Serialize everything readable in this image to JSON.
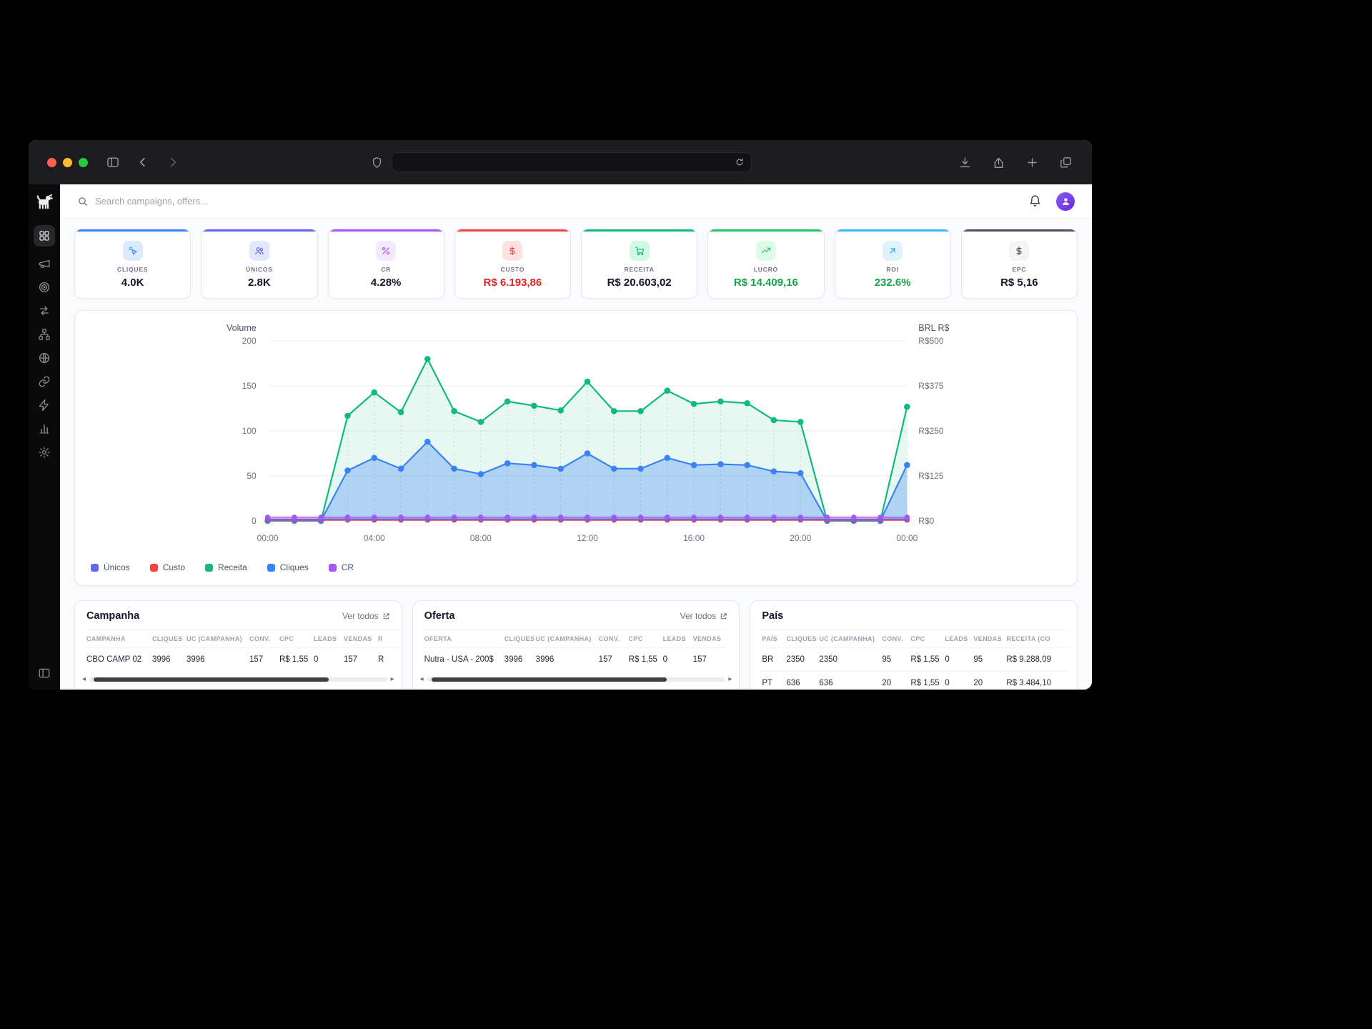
{
  "topbar": {
    "search_placeholder": "Search campaigns, offers..."
  },
  "kpis": [
    {
      "label": "CLIQUES",
      "value": "4.0K",
      "accent": "#3b82f6",
      "chip_bg": "#dbeafe",
      "icon_color": "#3b82f6",
      "value_color": "#111827"
    },
    {
      "label": "ÚNICOS",
      "value": "2.8K",
      "accent": "#6366f1",
      "chip_bg": "#e0e7ff",
      "icon_color": "#6366f1",
      "value_color": "#111827"
    },
    {
      "label": "CR",
      "value": "4.28%",
      "accent": "#a855f7",
      "chip_bg": "#f3e8ff",
      "icon_color": "#a855f7",
      "value_color": "#111827"
    },
    {
      "label": "CUSTO",
      "value": "R$ 6.193,86",
      "accent": "#ef4444",
      "chip_bg": "#fee2e2",
      "icon_color": "#ef4444",
      "value_color": "#dc2626"
    },
    {
      "label": "RECEITA",
      "value": "R$ 20.603,02",
      "accent": "#10b981",
      "chip_bg": "#d1fae5",
      "icon_color": "#10b981",
      "value_color": "#111827"
    },
    {
      "label": "LUCRO",
      "value": "R$ 14.409,16",
      "accent": "#22c55e",
      "chip_bg": "#dcfce7",
      "icon_color": "#22c55e",
      "value_color": "#16a34a"
    },
    {
      "label": "ROI",
      "value": "232.6%",
      "accent": "#38bdf8",
      "chip_bg": "#e0f2fe",
      "icon_color": "#0ea5e9",
      "value_color": "#16a34a"
    },
    {
      "label": "EPC",
      "value": "R$ 5,16",
      "accent": "#4b5563",
      "chip_bg": "#f3f4f6",
      "icon_color": "#52525b",
      "value_color": "#111827"
    }
  ],
  "chart_data": {
    "type": "area",
    "x_ticks": [
      "00:00",
      "04:00",
      "08:00",
      "12:00",
      "16:00",
      "20:00",
      "00:00"
    ],
    "left_axis": {
      "title": "Volume",
      "ticks": [
        0,
        50,
        100,
        150,
        200
      ],
      "range": [
        0,
        200
      ]
    },
    "right_axis": {
      "title": "BRL R$",
      "ticks": [
        "R$0",
        "R$125",
        "R$250",
        "R$375",
        "R$500"
      ],
      "range": [
        0,
        500
      ]
    },
    "series": [
      {
        "name": "Receita",
        "color": "#10b981",
        "axis": "right",
        "fill": "rgba(16,185,129,0.10)",
        "values": [
          0,
          0,
          0,
          292,
          357,
          302,
          450,
          305,
          275,
          332,
          320,
          307,
          387,
          305,
          305,
          362,
          325,
          332,
          327,
          280,
          275,
          0,
          0,
          0,
          317
        ]
      },
      {
        "name": "Cliques",
        "color": "#3b82f6",
        "axis": "left",
        "fill": "rgba(59,130,246,0.32)",
        "values": [
          0,
          0,
          0,
          56,
          70,
          58,
          88,
          58,
          52,
          64,
          62,
          58,
          75,
          58,
          58,
          70,
          62,
          63,
          62,
          55,
          53,
          0,
          0,
          0,
          62
        ]
      },
      {
        "name": "Custo",
        "color": "#ef4444",
        "axis": "right",
        "values": [
          2,
          2,
          2,
          2,
          2,
          2,
          2,
          2,
          2,
          2,
          2,
          2,
          2,
          2,
          2,
          2,
          2,
          2,
          2,
          2,
          2,
          2,
          2,
          2,
          2
        ]
      },
      {
        "name": "Únicos",
        "color": "#6366f1",
        "axis": "left",
        "values": [
          2,
          2,
          2,
          2,
          2,
          2,
          2,
          2,
          2,
          2,
          2,
          2,
          2,
          2,
          2,
          2,
          2,
          2,
          2,
          2,
          2,
          2,
          2,
          2,
          2
        ]
      },
      {
        "name": "CR",
        "color": "#a855f7",
        "axis": "left",
        "values": [
          4,
          4,
          4,
          4,
          4,
          4,
          4,
          4,
          4,
          4,
          4,
          4,
          4,
          4,
          4,
          4,
          4,
          4,
          4,
          4,
          4,
          4,
          4,
          4,
          4
        ]
      }
    ],
    "legend": [
      {
        "label": "Únicos",
        "color": "#6366f1"
      },
      {
        "label": "Custo",
        "color": "#ef4444"
      },
      {
        "label": "Receita",
        "color": "#10b981"
      },
      {
        "label": "Cliques",
        "color": "#3b82f6"
      },
      {
        "label": "CR",
        "color": "#a855f7"
      }
    ]
  },
  "tables": {
    "campanha": {
      "title": "Campanha",
      "link": "Ver todos",
      "headers": [
        "CAMPANHA",
        "CLIQUES",
        "UC (CAMPANHA)",
        "CONV.",
        "CPC",
        "LEADS",
        "VENDAS",
        "R"
      ],
      "rows": [
        [
          "CBO CAMP 02",
          "3996",
          "3996",
          "157",
          "R$ 1,55",
          "0",
          "157",
          "R"
        ]
      ]
    },
    "oferta": {
      "title": "Oferta",
      "link": "Ver todos",
      "headers": [
        "OFERTA",
        "CLIQUES",
        "UC (CAMPANHA)",
        "CONV.",
        "CPC",
        "LEADS",
        "VENDAS"
      ],
      "rows": [
        [
          "Nutra - USA - 200$",
          "3996",
          "3996",
          "157",
          "R$ 1,55",
          "0",
          "157"
        ]
      ]
    },
    "pais": {
      "title": "País",
      "headers": [
        "PAÍS",
        "CLIQUES",
        "UC (CAMPANHA)",
        "CONV.",
        "CPC",
        "LEADS",
        "VENDAS",
        "RECEITA (CO"
      ],
      "rows": [
        [
          "BR",
          "2350",
          "2350",
          "95",
          "R$ 1,55",
          "0",
          "95",
          "R$ 9.288,09"
        ],
        [
          "PT",
          "636",
          "636",
          "20",
          "R$ 1,55",
          "0",
          "20",
          "R$ 3.484,10"
        ]
      ]
    }
  }
}
